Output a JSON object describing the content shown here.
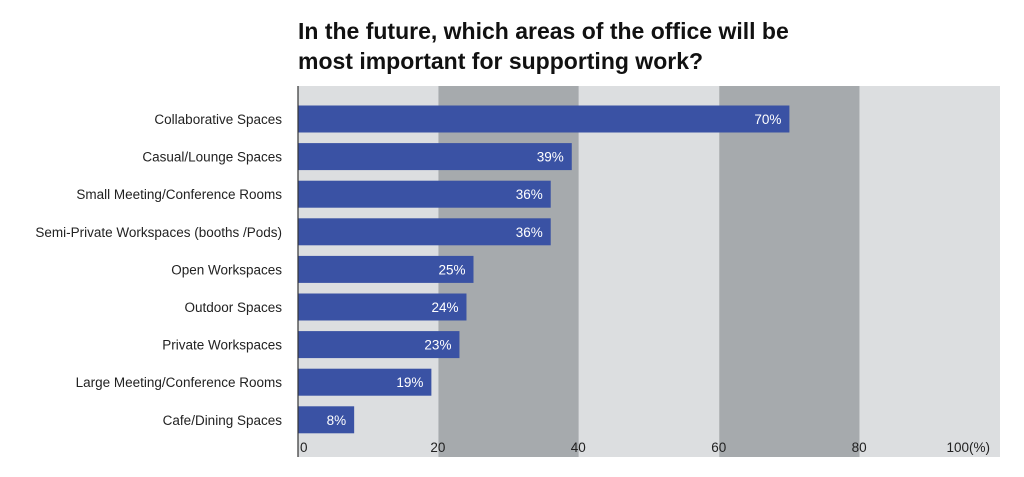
{
  "chart_data": {
    "type": "bar",
    "orientation": "horizontal",
    "title_lines": [
      "In the future, which areas of the office will be",
      "most important for supporting work?"
    ],
    "categories": [
      "Collaborative Spaces",
      "Casual/Lounge Spaces",
      "Small Meeting/Conference Rooms",
      "Semi-Private Workspaces (booths /Pods)",
      "Open Workspaces",
      "Outdoor Spaces",
      "Private Workspaces",
      "Large Meeting/Conference Rooms",
      "Cafe/Dining Spaces"
    ],
    "values": [
      70,
      39,
      36,
      36,
      25,
      24,
      23,
      19,
      8
    ],
    "value_labels": [
      "70%",
      "39%",
      "36%",
      "36%",
      "25%",
      "24%",
      "23%",
      "19%",
      "8%"
    ],
    "xlim": [
      0,
      100
    ],
    "x_ticks": [
      0,
      20,
      40,
      60,
      80,
      100
    ],
    "x_tick_labels": [
      "0",
      "20",
      "40",
      "60",
      "80",
      "100(%)"
    ],
    "grid": false,
    "legend": "none",
    "colors": {
      "bar": "#3a52a4",
      "band_light": "#dcdee0",
      "band_dark": "#a6aaad",
      "axis": "#333333"
    }
  }
}
